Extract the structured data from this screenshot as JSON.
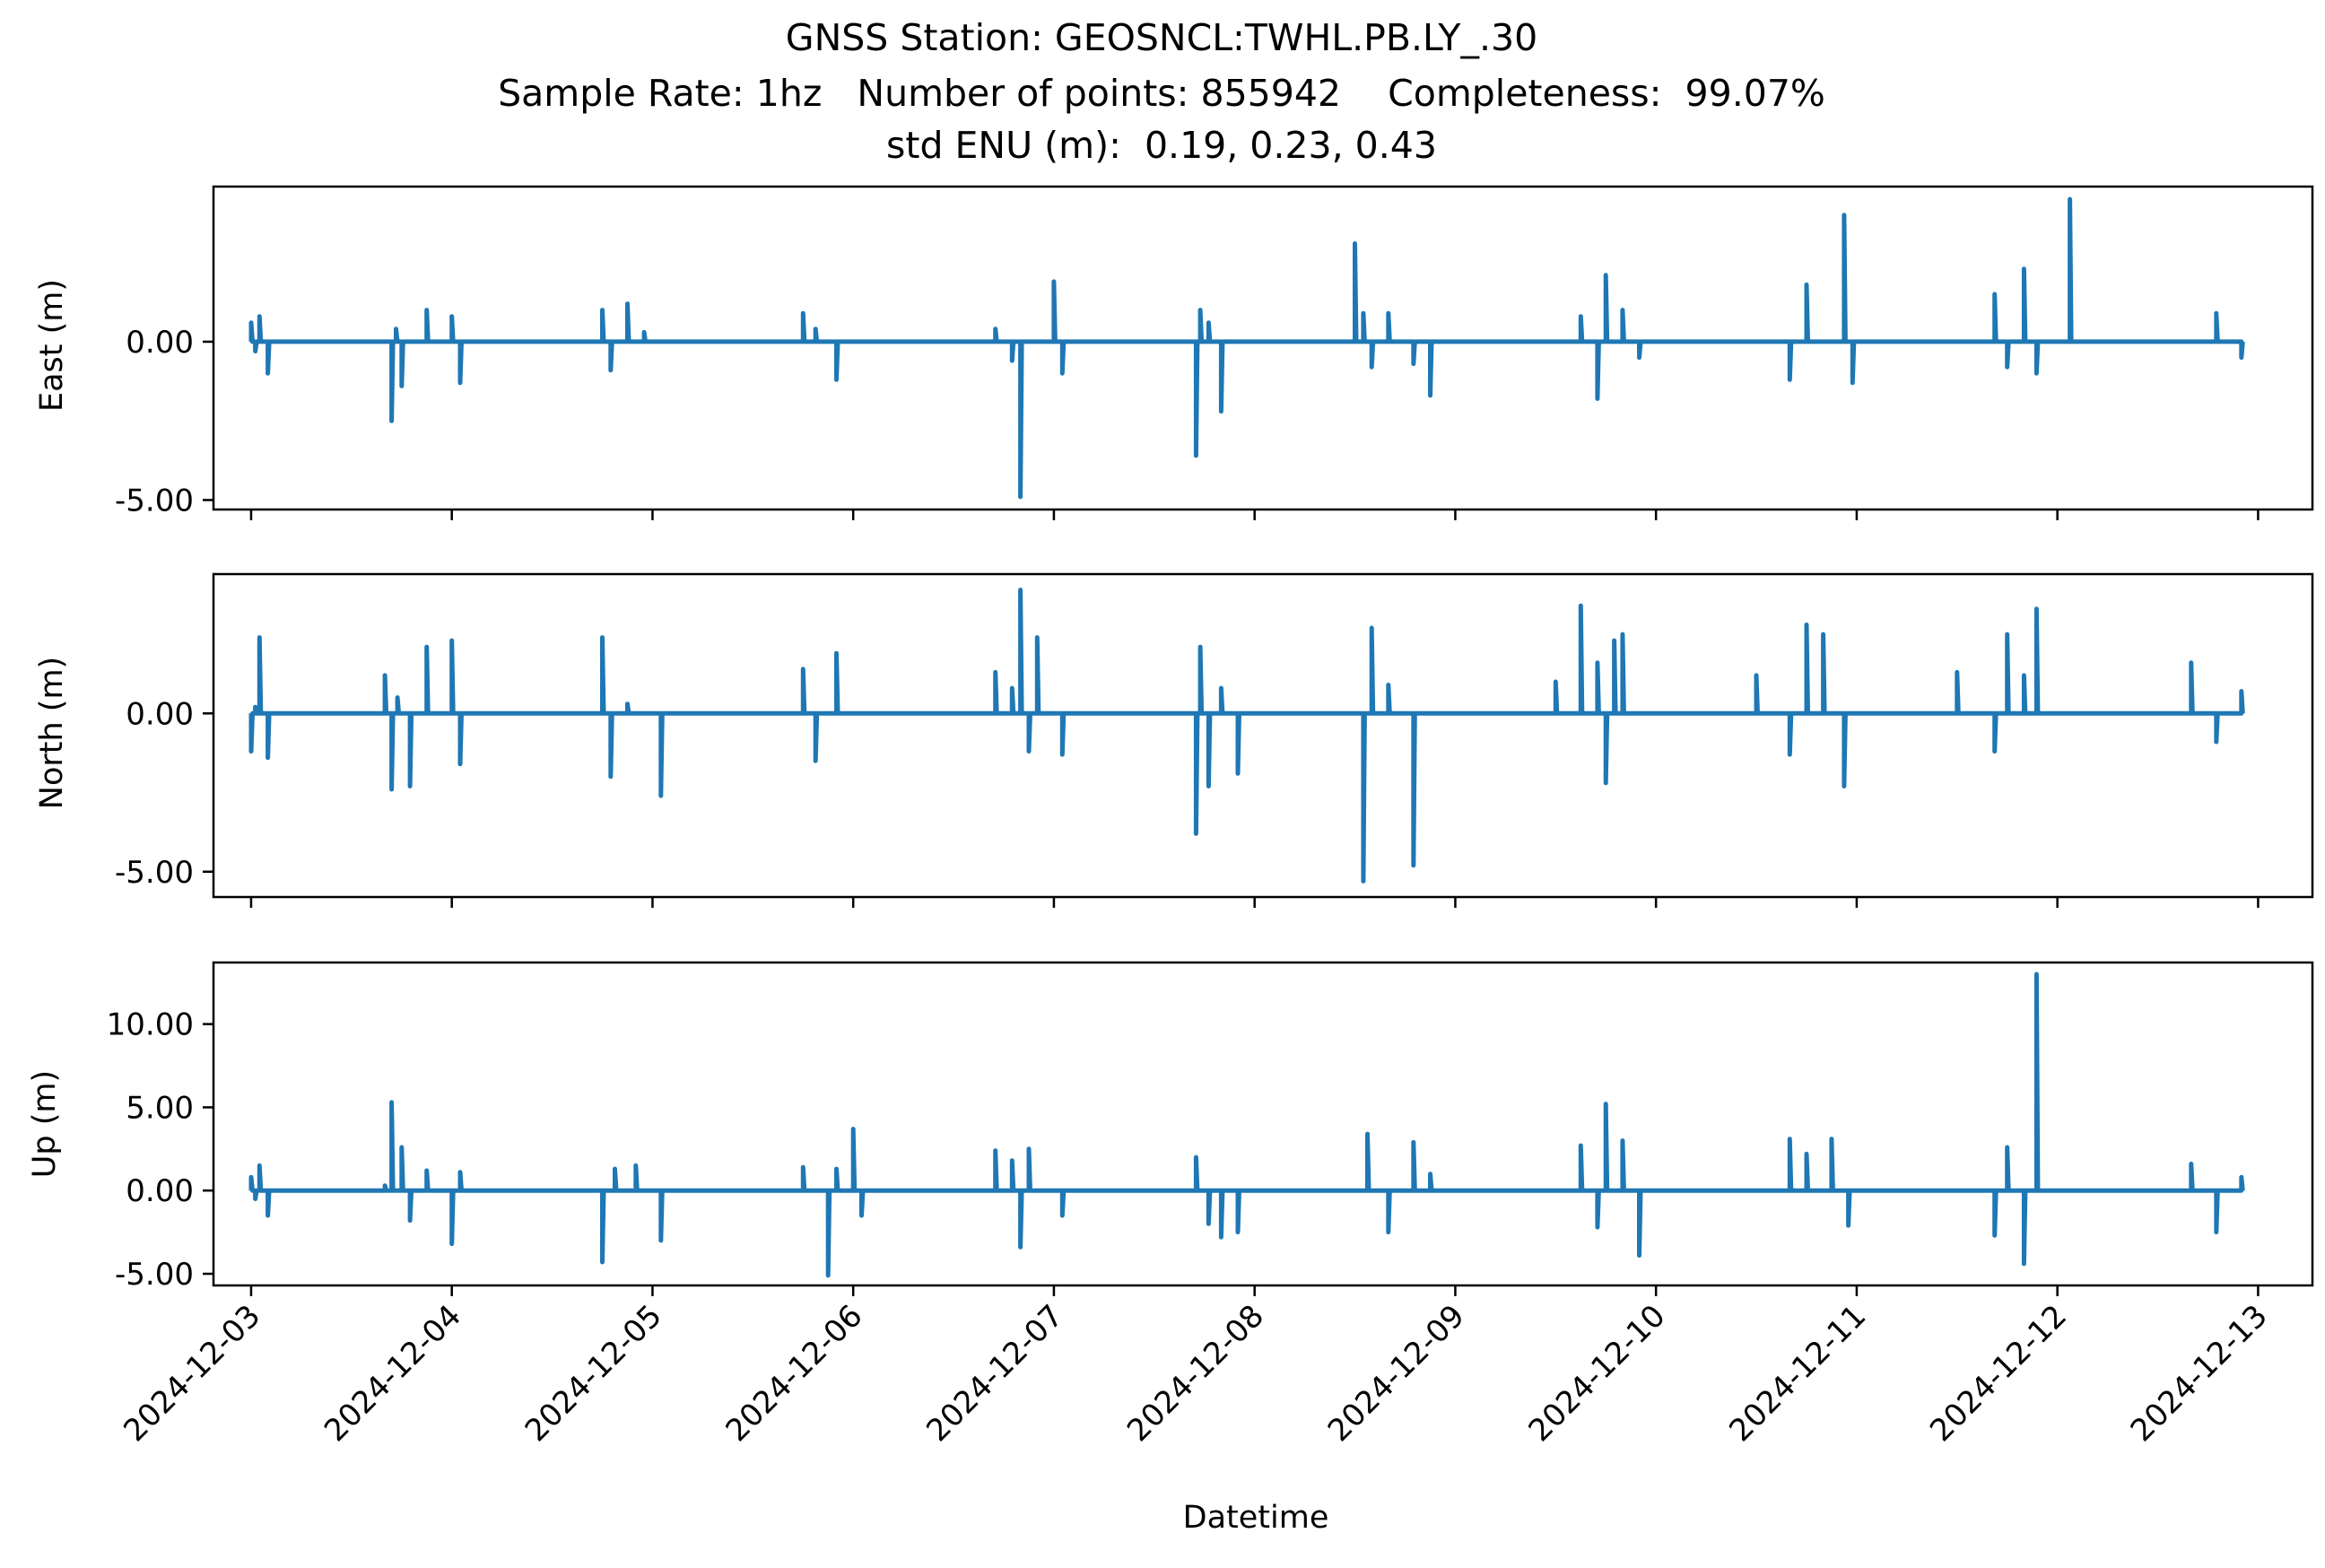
{
  "chart_data": [
    {
      "type": "line",
      "title": "GNSS Station: GEOSNCL:TWHL.PB.LY_.30",
      "subtitle": [
        "Sample Rate: 1hz   Number of points: 855942    Completeness:  99.07%",
        "std ENU (m):  0.19, 0.23, 0.43"
      ],
      "ylabel": "East (m)",
      "ylim": [
        -5.3,
        4.9
      ],
      "yticks": [
        -5.0,
        0.0
      ],
      "ytick_labels": [
        "-5.00",
        "0.00"
      ],
      "xlim": [
        "2024-12-02T19:30",
        "2024-12-13T06:30"
      ],
      "color": "#1f77b4",
      "series": [
        {
          "x": [
            "2024-12-03T00:00",
            "2024-12-03T00:30",
            "2024-12-03T01:00",
            "2024-12-03T02:00",
            "2024-12-03T06:00",
            "2024-12-03T12:00",
            "2024-12-03T16:00",
            "2024-12-03T16:48",
            "2024-12-03T17:20",
            "2024-12-03T18:00",
            "2024-12-03T19:00",
            "2024-12-03T21:00",
            "2024-12-04T00:00",
            "2024-12-04T01:00",
            "2024-12-04T02:00",
            "2024-12-04T06:00",
            "2024-12-04T12:00",
            "2024-12-04T18:00",
            "2024-12-04T19:00",
            "2024-12-04T21:00",
            "2024-12-04T23:00",
            "2024-12-05T03:00",
            "2024-12-05T12:00",
            "2024-12-05T18:00",
            "2024-12-05T19:30",
            "2024-12-05T22:00",
            "2024-12-06T01:00",
            "2024-12-06T06:00",
            "2024-12-06T12:00",
            "2024-12-06T17:00",
            "2024-12-06T19:00",
            "2024-12-06T20:00",
            "2024-12-06T21:00",
            "2024-12-06T22:00",
            "2024-12-07T00:00",
            "2024-12-07T01:00",
            "2024-12-07T06:00",
            "2024-12-07T12:00",
            "2024-12-07T17:00",
            "2024-12-07T17:30",
            "2024-12-07T18:30",
            "2024-12-07T20:00",
            "2024-12-07T22:00",
            "2024-12-08T02:00",
            "2024-12-08T06:00",
            "2024-12-08T12:00",
            "2024-12-08T13:00",
            "2024-12-08T14:00",
            "2024-12-08T16:00",
            "2024-12-08T19:00",
            "2024-12-08T21:00",
            "2024-12-09T01:00",
            "2024-12-09T06:00",
            "2024-12-09T12:00",
            "2024-12-09T15:00",
            "2024-12-09T17:00",
            "2024-12-09T18:00",
            "2024-12-09T19:00",
            "2024-12-09T20:00",
            "2024-12-09T22:00",
            "2024-12-10T02:00",
            "2024-12-10T06:00",
            "2024-12-10T12:00",
            "2024-12-10T16:00",
            "2024-12-10T18:00",
            "2024-12-10T22:30",
            "2024-12-10T23:30",
            "2024-12-11T03:00",
            "2024-12-11T06:00",
            "2024-12-11T12:00",
            "2024-12-11T16:30",
            "2024-12-11T18:00",
            "2024-12-11T20:00",
            "2024-12-11T21:30",
            "2024-12-12T01:30",
            "2024-12-12T06:00",
            "2024-12-12T12:00",
            "2024-12-12T16:00",
            "2024-12-12T19:00",
            "2024-12-12T22:00"
          ],
          "y": [
            0.6,
            -0.3,
            0.8,
            -1.0,
            0.0,
            0.0,
            0.0,
            -2.5,
            0.4,
            -1.4,
            0.0,
            1.0,
            0.8,
            -1.3,
            0.0,
            0.0,
            0.0,
            1.0,
            -0.9,
            1.2,
            0.3,
            0.0,
            0.0,
            0.9,
            0.4,
            -1.2,
            0.0,
            0.0,
            0.0,
            0.4,
            -0.6,
            -4.9,
            0.0,
            0.0,
            1.9,
            -1.0,
            0.0,
            0.0,
            -3.6,
            1.0,
            0.6,
            -2.2,
            0.0,
            0.0,
            0.0,
            3.1,
            0.9,
            -0.8,
            0.9,
            -0.7,
            -1.7,
            0.0,
            0.0,
            0.0,
            0.8,
            -1.8,
            2.1,
            0.0,
            1.0,
            -0.5,
            0.0,
            0.0,
            0.0,
            -1.2,
            1.8,
            4.0,
            -1.3,
            0.0,
            0.0,
            0.0,
            1.5,
            -0.8,
            2.3,
            -1.0,
            4.5,
            0.0,
            0.0,
            0.0,
            0.9,
            -0.5
          ]
        }
      ]
    },
    {
      "type": "line",
      "ylabel": "North (m)",
      "ylim": [
        -5.8,
        4.4
      ],
      "yticks": [
        -5.0,
        0.0
      ],
      "ytick_labels": [
        "-5.00",
        "0.00"
      ],
      "xlim": [
        "2024-12-02T19:30",
        "2024-12-13T06:30"
      ],
      "color": "#1f77b4",
      "series": [
        {
          "x": [
            "2024-12-03T00:00",
            "2024-12-03T00:30",
            "2024-12-03T01:00",
            "2024-12-03T02:00",
            "2024-12-03T06:00",
            "2024-12-03T12:00",
            "2024-12-03T16:00",
            "2024-12-03T16:48",
            "2024-12-03T17:30",
            "2024-12-03T19:00",
            "2024-12-03T21:00",
            "2024-12-04T00:00",
            "2024-12-04T01:00",
            "2024-12-04T06:00",
            "2024-12-04T12:00",
            "2024-12-04T18:00",
            "2024-12-04T19:00",
            "2024-12-04T21:00",
            "2024-12-05T01:00",
            "2024-12-05T06:00",
            "2024-12-05T12:00",
            "2024-12-05T18:00",
            "2024-12-05T19:30",
            "2024-12-05T22:00",
            "2024-12-06T01:00",
            "2024-12-06T06:00",
            "2024-12-06T12:00",
            "2024-12-06T17:00",
            "2024-12-06T19:00",
            "2024-12-06T20:00",
            "2024-12-06T21:00",
            "2024-12-06T22:00",
            "2024-12-07T01:00",
            "2024-12-07T06:00",
            "2024-12-07T12:00",
            "2024-12-07T17:00",
            "2024-12-07T17:30",
            "2024-12-07T18:30",
            "2024-12-07T20:00",
            "2024-12-07T22:00",
            "2024-12-08T02:00",
            "2024-12-08T06:00",
            "2024-12-08T12:00",
            "2024-12-08T13:00",
            "2024-12-08T14:00",
            "2024-12-08T16:00",
            "2024-12-08T19:00",
            "2024-12-08T21:00",
            "2024-12-09T01:00",
            "2024-12-09T06:00",
            "2024-12-09T12:00",
            "2024-12-09T15:00",
            "2024-12-09T17:00",
            "2024-12-09T18:00",
            "2024-12-09T19:00",
            "2024-12-09T20:00",
            "2024-12-09T22:00",
            "2024-12-10T02:00",
            "2024-12-10T06:00",
            "2024-12-10T12:00",
            "2024-12-10T16:00",
            "2024-12-10T18:00",
            "2024-12-10T20:00",
            "2024-12-10T22:30",
            "2024-12-10T23:30",
            "2024-12-11T03:00",
            "2024-12-11T06:00",
            "2024-12-11T12:00",
            "2024-12-11T16:30",
            "2024-12-11T18:00",
            "2024-12-11T20:00",
            "2024-12-11T21:30",
            "2024-12-12T01:30",
            "2024-12-12T06:00",
            "2024-12-12T12:00",
            "2024-12-12T16:00",
            "2024-12-12T19:00",
            "2024-12-12T22:00"
          ],
          "y": [
            -1.2,
            0.2,
            2.4,
            -1.4,
            0.0,
            0.0,
            1.2,
            -2.4,
            0.5,
            -2.3,
            2.1,
            2.3,
            -1.6,
            0.0,
            0.0,
            2.4,
            -2.0,
            0.3,
            -2.6,
            0.0,
            0.0,
            1.4,
            -1.5,
            1.9,
            0.0,
            0.0,
            0.0,
            1.3,
            0.8,
            3.9,
            -1.2,
            2.4,
            -1.3,
            0.0,
            0.0,
            -3.8,
            2.1,
            -2.3,
            0.8,
            -1.9,
            0.0,
            0.0,
            0.0,
            -5.3,
            2.7,
            0.9,
            -4.8,
            0.0,
            0.0,
            0.0,
            1.0,
            3.4,
            1.6,
            -2.2,
            2.3,
            2.5,
            0.0,
            0.0,
            0.0,
            1.2,
            -1.3,
            2.8,
            2.5,
            -2.3,
            0.0,
            0.0,
            0.0,
            1.3,
            -1.2,
            2.5,
            1.2,
            3.3,
            0.0,
            0.0,
            0.0,
            1.6,
            -0.9,
            0.7
          ]
        }
      ]
    },
    {
      "type": "line",
      "ylabel": "Up (m)",
      "xlabel": "Datetime",
      "ylim": [
        -5.7,
        13.7
      ],
      "yticks": [
        -5.0,
        0.0,
        5.0,
        10.0
      ],
      "ytick_labels": [
        "-5.00",
        "0.00",
        "5.00",
        "10.00"
      ],
      "xlim": [
        "2024-12-02T19:30",
        "2024-12-13T06:30"
      ],
      "xticks": [
        "2024-12-03",
        "2024-12-04",
        "2024-12-05",
        "2024-12-06",
        "2024-12-07",
        "2024-12-08",
        "2024-12-09",
        "2024-12-10",
        "2024-12-11",
        "2024-12-12",
        "2024-12-13"
      ],
      "color": "#1f77b4",
      "series": [
        {
          "x": [
            "2024-12-03T00:00",
            "2024-12-03T00:30",
            "2024-12-03T01:00",
            "2024-12-03T02:00",
            "2024-12-03T06:00",
            "2024-12-03T12:00",
            "2024-12-03T16:00",
            "2024-12-03T16:48",
            "2024-12-03T18:00",
            "2024-12-03T19:00",
            "2024-12-03T21:00",
            "2024-12-04T00:00",
            "2024-12-04T01:00",
            "2024-12-04T06:00",
            "2024-12-04T12:00",
            "2024-12-04T18:00",
            "2024-12-04T19:30",
            "2024-12-04T22:00",
            "2024-12-05T01:00",
            "2024-12-05T06:00",
            "2024-12-05T12:00",
            "2024-12-05T18:00",
            "2024-12-05T21:00",
            "2024-12-05T22:00",
            "2024-12-06T00:00",
            "2024-12-06T01:00",
            "2024-12-06T06:00",
            "2024-12-06T12:00",
            "2024-12-06T17:00",
            "2024-12-06T19:00",
            "2024-12-06T20:00",
            "2024-12-06T21:00",
            "2024-12-07T01:00",
            "2024-12-07T06:00",
            "2024-12-07T12:00",
            "2024-12-07T17:00",
            "2024-12-07T18:30",
            "2024-12-07T20:00",
            "2024-12-07T22:00",
            "2024-12-08T02:00",
            "2024-12-08T06:00",
            "2024-12-08T12:00",
            "2024-12-08T13:30",
            "2024-12-08T16:00",
            "2024-12-08T19:00",
            "2024-12-08T21:00",
            "2024-12-09T01:00",
            "2024-12-09T06:00",
            "2024-12-09T12:00",
            "2024-12-09T15:00",
            "2024-12-09T17:00",
            "2024-12-09T18:00",
            "2024-12-09T20:00",
            "2024-12-09T22:00",
            "2024-12-10T02:00",
            "2024-12-10T06:00",
            "2024-12-10T12:00",
            "2024-12-10T16:00",
            "2024-12-10T18:00",
            "2024-12-10T21:00",
            "2024-12-10T23:00",
            "2024-12-11T03:00",
            "2024-12-11T06:00",
            "2024-12-11T12:00",
            "2024-12-11T16:30",
            "2024-12-11T18:00",
            "2024-12-11T20:00",
            "2024-12-11T21:30",
            "2024-12-12T01:30",
            "2024-12-12T06:00",
            "2024-12-12T12:00",
            "2024-12-12T16:00",
            "2024-12-12T19:00",
            "2024-12-12T22:00"
          ],
          "y": [
            0.8,
            -0.5,
            1.5,
            -1.5,
            0.0,
            0.0,
            0.3,
            5.3,
            2.6,
            -1.8,
            1.2,
            -3.2,
            1.1,
            0.0,
            0.0,
            -4.3,
            1.3,
            1.5,
            -3.0,
            0.0,
            0.0,
            1.4,
            -5.1,
            1.3,
            3.7,
            -1.5,
            0.0,
            0.0,
            2.4,
            1.8,
            -3.4,
            2.5,
            -1.5,
            0.0,
            0.0,
            2.0,
            -2.0,
            -2.8,
            -2.5,
            0.0,
            0.0,
            0.0,
            3.4,
            -2.5,
            2.9,
            1.0,
            0.0,
            0.0,
            0.0,
            2.7,
            -2.2,
            5.2,
            3.0,
            -3.9,
            0.0,
            0.0,
            0.0,
            3.1,
            2.2,
            3.1,
            -2.1,
            0.0,
            0.0,
            0.0,
            -2.7,
            2.6,
            -4.4,
            13.0,
            0.0,
            0.0,
            0.0,
            1.6,
            -2.5,
            0.8
          ]
        }
      ]
    }
  ]
}
